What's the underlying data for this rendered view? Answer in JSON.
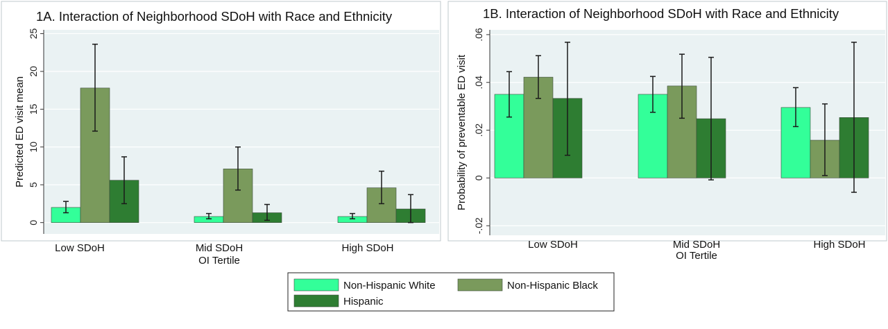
{
  "chart_data": [
    {
      "type": "bar",
      "title": "1A. Interaction of Neighborhood SDoH with Race and Ethnicity",
      "xlabel": "OI Tertile",
      "ylabel": "Predicted ED visit mean",
      "categories": [
        "Low SDoH",
        "Mid SDoH",
        "High SDoH"
      ],
      "ylim": [
        -1.5,
        25.5
      ],
      "yticks": [
        0,
        5,
        10,
        15,
        20,
        25
      ],
      "ytick_labels": [
        "0",
        "5",
        "10",
        "15",
        "20",
        "25"
      ],
      "grid": true,
      "series": [
        {
          "name": "Non-Hispanic White",
          "values": [
            2.0,
            0.8,
            0.8
          ],
          "ci_low": [
            1.3,
            0.5,
            0.5
          ],
          "ci_high": [
            2.8,
            1.2,
            1.2
          ]
        },
        {
          "name": "Non-Hispanic Black",
          "values": [
            17.8,
            7.1,
            4.6
          ],
          "ci_low": [
            12.1,
            4.3,
            2.5
          ],
          "ci_high": [
            23.6,
            10.0,
            6.8
          ]
        },
        {
          "name": "Hispanic",
          "values": [
            5.6,
            1.3,
            1.8
          ],
          "ci_low": [
            2.5,
            0.3,
            0.0
          ],
          "ci_high": [
            8.7,
            2.4,
            3.7
          ]
        }
      ]
    },
    {
      "type": "bar",
      "title": "1B. Interaction of Neighborhood SDoH with Race and Ethnicity",
      "xlabel": "OI Tertile",
      "ylabel": "Probability of preventable ED visit",
      "categories": [
        "Low SDoH",
        "Mid SDoH",
        "High SDoH"
      ],
      "ylim": [
        -0.024,
        0.062
      ],
      "yticks": [
        -0.02,
        0,
        0.02,
        0.04,
        0.06
      ],
      "ytick_labels": [
        "-.02",
        "0",
        ".02",
        ".04",
        ".06"
      ],
      "grid": true,
      "series": [
        {
          "name": "Non-Hispanic White",
          "values": [
            0.035,
            0.035,
            0.0295
          ],
          "ci_low": [
            0.0255,
            0.0275,
            0.0215
          ],
          "ci_high": [
            0.0445,
            0.0425,
            0.0378
          ]
        },
        {
          "name": "Non-Hispanic Black",
          "values": [
            0.0422,
            0.0385,
            0.0158
          ],
          "ci_low": [
            0.0333,
            0.025,
            0.001
          ],
          "ci_high": [
            0.0512,
            0.0518,
            0.031
          ]
        },
        {
          "name": "Hispanic",
          "values": [
            0.0333,
            0.0248,
            0.0253
          ],
          "ci_low": [
            0.0095,
            -0.0008,
            -0.006
          ],
          "ci_high": [
            0.0568,
            0.0505,
            0.0568
          ]
        }
      ]
    }
  ],
  "legend": {
    "placement": "bottom-center",
    "items": [
      {
        "label": "Non-Hispanic White",
        "color": "#33FF99"
      },
      {
        "label": "Non-Hispanic Black",
        "color": "#7A9A5C"
      },
      {
        "label": "Hispanic",
        "color": "#2E7D32"
      }
    ]
  },
  "colors": {
    "series": [
      "#33FF99",
      "#7A9A5C",
      "#2E7D32"
    ],
    "plot_background": "#EAF2F3",
    "panel_background": "#FFFFFF",
    "grid": "#FFFFFF",
    "error_bar": "#1a1a1a"
  }
}
